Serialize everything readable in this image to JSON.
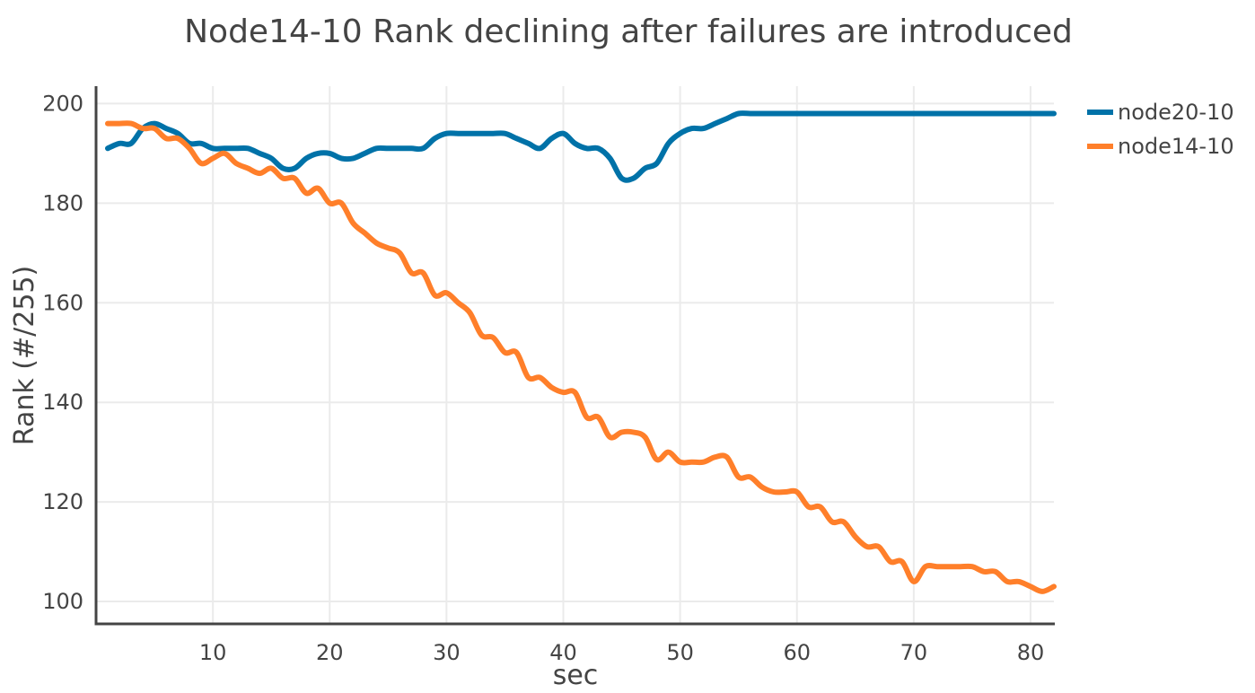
{
  "chart_data": {
    "type": "line",
    "title": "Node14-10 Rank declining after failures are introduced",
    "xlabel": "sec",
    "ylabel": "Rank (#/255)",
    "xlim": [
      0,
      82
    ],
    "ylim": [
      95.5,
      203.5
    ],
    "x_ticks": [
      10,
      20,
      30,
      40,
      50,
      60,
      70,
      80
    ],
    "y_ticks": [
      100,
      120,
      140,
      160,
      180,
      200
    ],
    "grid": true,
    "legend_position": "top-right",
    "series": [
      {
        "name": "node20-10",
        "color": "#0072a8",
        "x": [
          1,
          2,
          3,
          4,
          5,
          6,
          7,
          8,
          9,
          10,
          11,
          12,
          13,
          14,
          15,
          16,
          17,
          18,
          19,
          20,
          21,
          22,
          23,
          24,
          25,
          26,
          27,
          28,
          29,
          30,
          31,
          32,
          33,
          34,
          35,
          36,
          37,
          38,
          39,
          40,
          41,
          42,
          43,
          44,
          45,
          46,
          47,
          48,
          49,
          50,
          51,
          52,
          53,
          54,
          55,
          56,
          57,
          58,
          59,
          60,
          61,
          62,
          63,
          64,
          65,
          66,
          67,
          68,
          69,
          70,
          71,
          72,
          73,
          74,
          75,
          76,
          77,
          78,
          79,
          80,
          81,
          82
        ],
        "y": [
          191,
          192,
          192,
          195,
          196,
          195,
          194,
          192,
          192,
          191,
          191,
          191,
          191,
          190,
          189,
          187,
          187,
          189,
          190,
          190,
          189,
          189,
          190,
          191,
          191,
          191,
          191,
          191,
          193,
          194,
          194,
          194,
          194,
          194,
          194,
          193,
          192,
          191,
          193,
          194,
          192,
          191,
          191,
          189,
          185,
          185,
          187,
          188,
          192,
          194,
          195,
          195,
          196,
          197,
          198,
          198,
          198,
          198,
          198,
          198,
          198,
          198,
          198,
          198,
          198,
          198,
          198,
          198,
          198,
          198,
          198,
          198,
          198,
          198,
          198,
          198,
          198,
          198,
          198,
          198,
          198,
          198
        ]
      },
      {
        "name": "node14-10",
        "color": "#ff7f2a",
        "x": [
          1,
          2,
          3,
          4,
          5,
          6,
          7,
          8,
          9,
          10,
          11,
          12,
          13,
          14,
          15,
          16,
          17,
          18,
          19,
          20,
          21,
          22,
          23,
          24,
          25,
          26,
          27,
          28,
          29,
          30,
          31,
          32,
          33,
          34,
          35,
          36,
          37,
          38,
          39,
          40,
          41,
          42,
          43,
          44,
          45,
          46,
          47,
          48,
          49,
          50,
          51,
          52,
          53,
          54,
          55,
          56,
          57,
          58,
          59,
          60,
          61,
          62,
          63,
          64,
          65,
          66,
          67,
          68,
          69,
          70,
          71,
          72,
          73,
          74,
          75,
          76,
          77,
          78,
          79,
          80,
          81,
          82
        ],
        "y": [
          196,
          196,
          196,
          195,
          195,
          193,
          193,
          191,
          188,
          189,
          190,
          188,
          187,
          186,
          187,
          185,
          185,
          182,
          183,
          180,
          180,
          176,
          174,
          172,
          171,
          170,
          166,
          166,
          161.5,
          162,
          160,
          158,
          153.5,
          153,
          150,
          150,
          145,
          145,
          143,
          142,
          142,
          137,
          137,
          133,
          134,
          134,
          133,
          128.5,
          130,
          128,
          128,
          128,
          129,
          129,
          125,
          125,
          123,
          122,
          122,
          122,
          119,
          119,
          116,
          116,
          113,
          111,
          111,
          108,
          108,
          104,
          107,
          107,
          107,
          107,
          107,
          106,
          106,
          104,
          104,
          103,
          102,
          103
        ]
      }
    ]
  }
}
